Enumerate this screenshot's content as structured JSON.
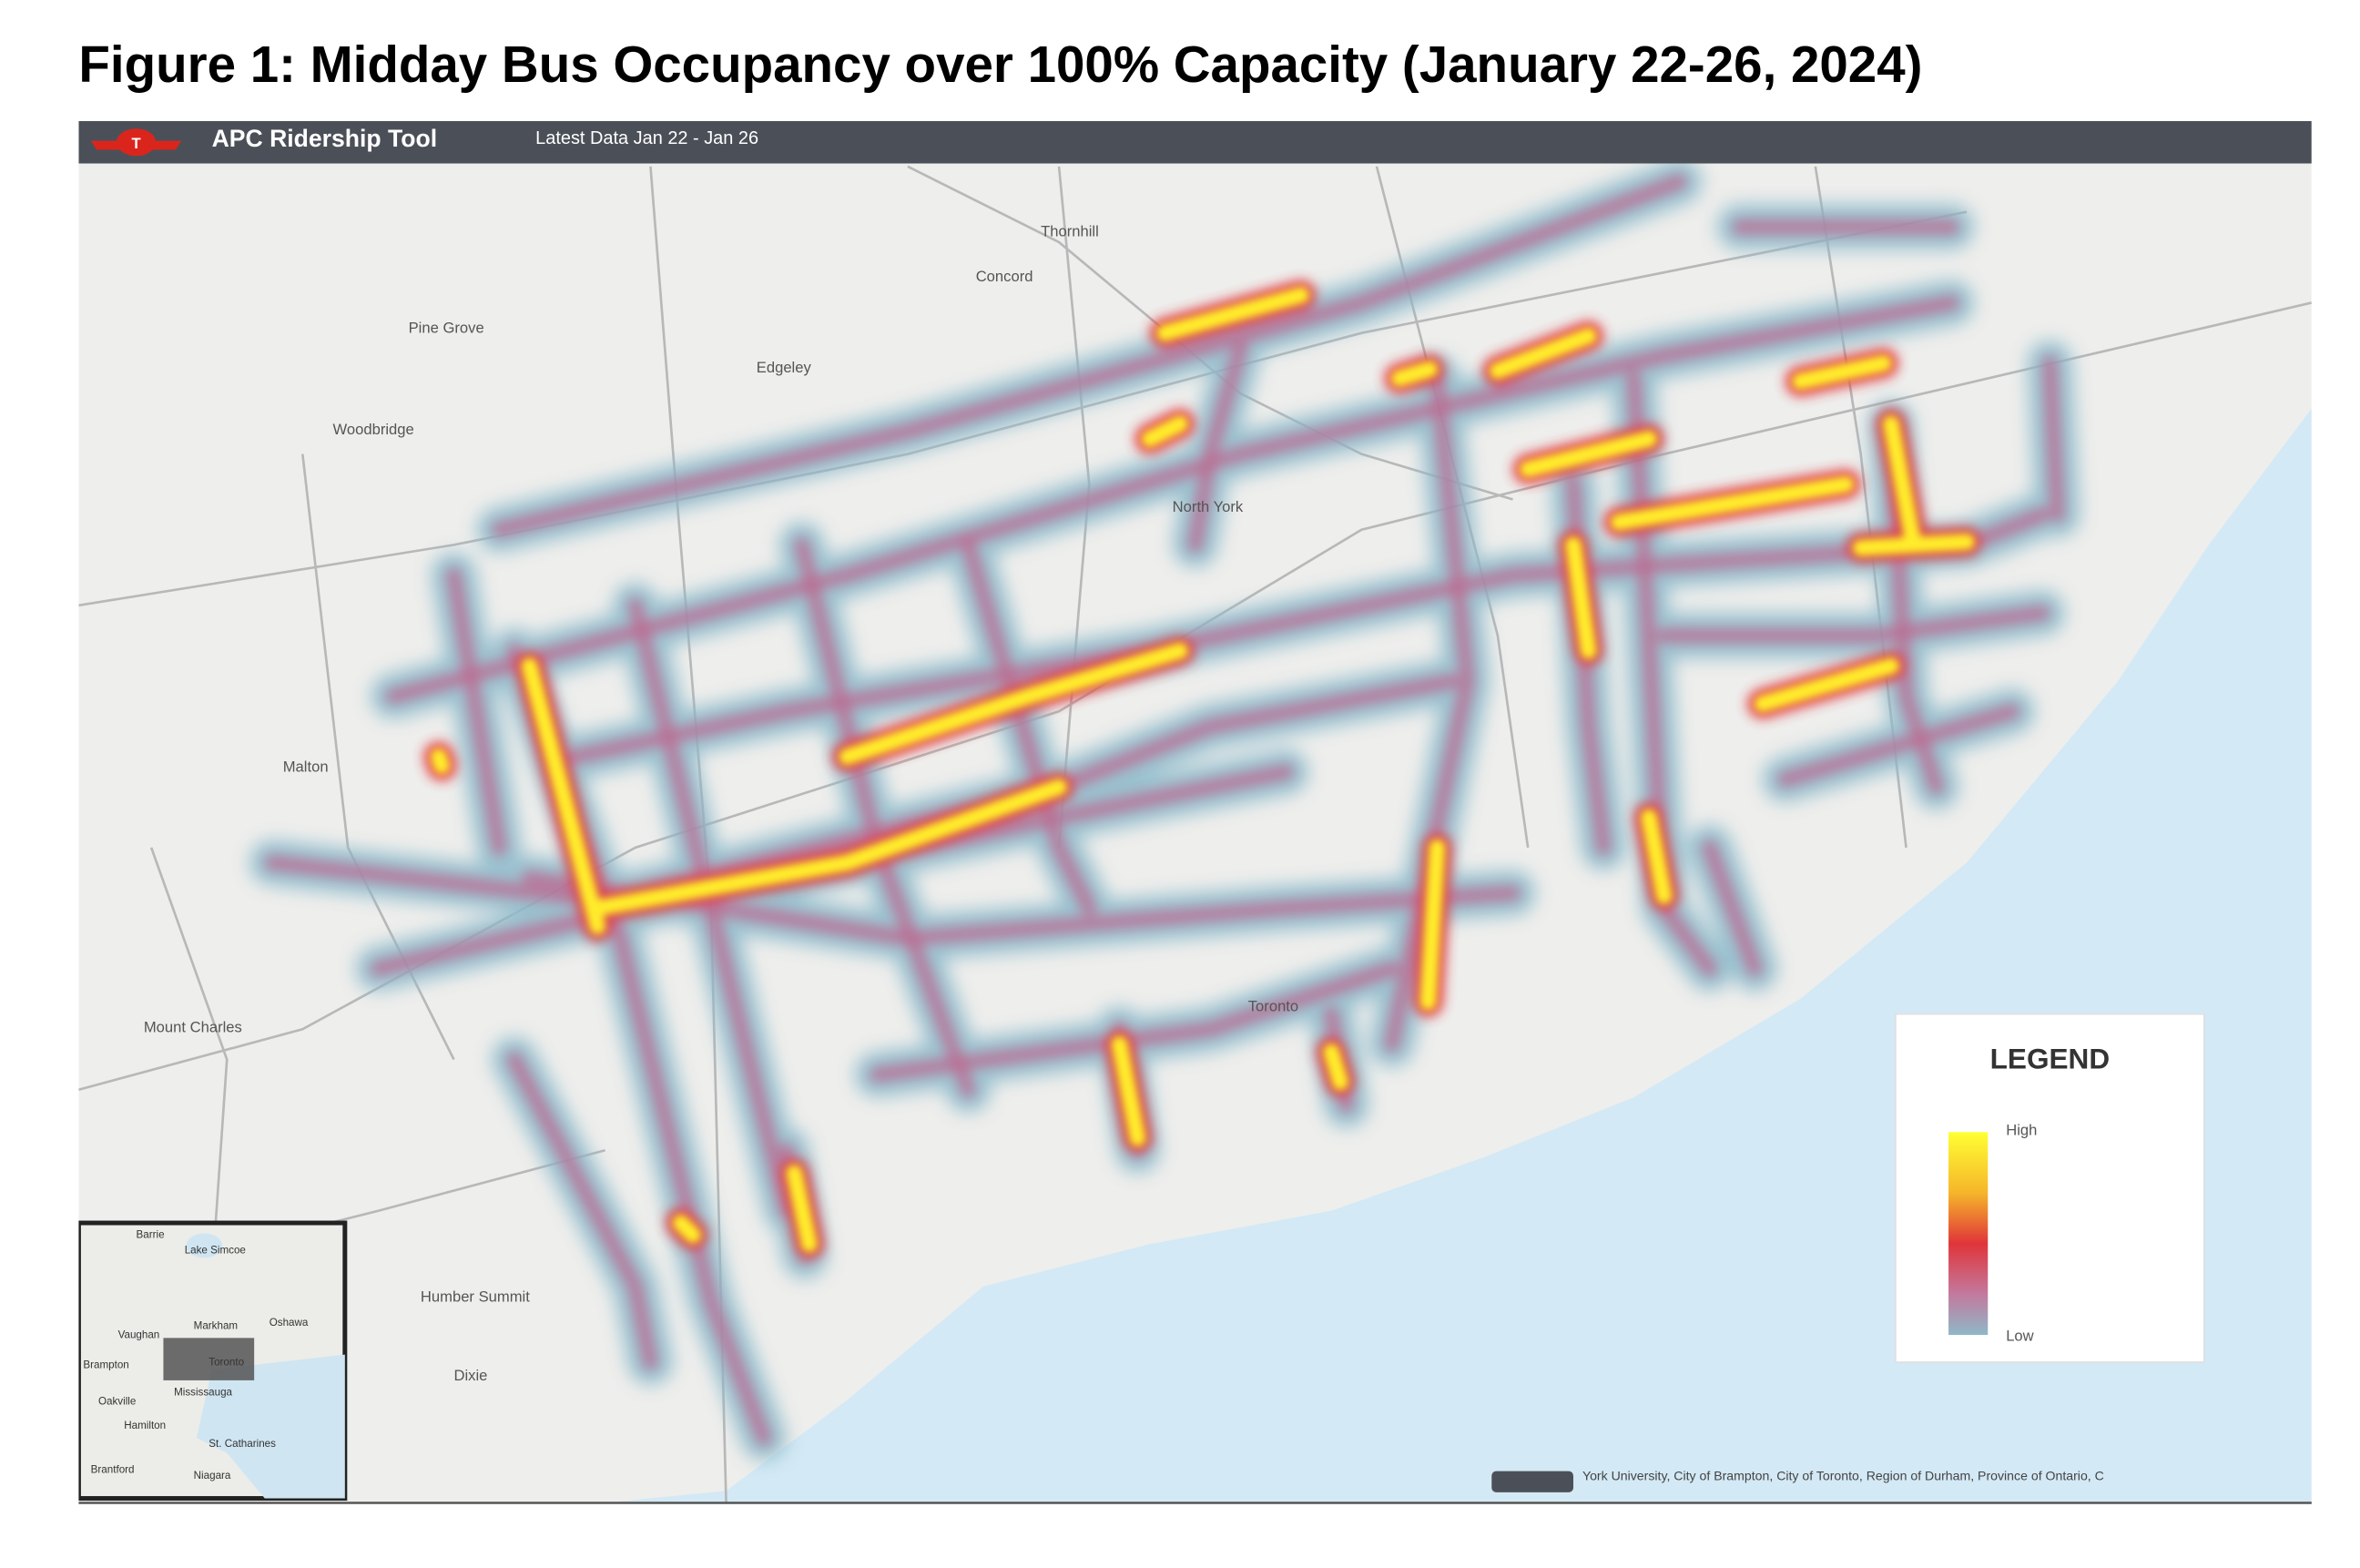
{
  "title": "Figure 1: Midday Bus Occupancy over 100% Capacity (January 22-26, 2024)",
  "header": {
    "app_name": "APC Ridership Tool",
    "latest_data": "Latest Data Jan 22 - Jan 26"
  },
  "map": {
    "place_labels": [
      "Thornhill",
      "Concord",
      "Edgeley",
      "Pine Grove",
      "Woodbridge",
      "North York",
      "Malton",
      "Toronto",
      "Dixie",
      "Mount Charles",
      "Humber Summit"
    ],
    "attribution": "York University, City of Brampton, City of Toronto, Region of Durham, Province of Ontario, C"
  },
  "inset": {
    "labels": [
      "Barrie",
      "Lake Simcoe",
      "Markham",
      "Oshawa",
      "Vaughan",
      "Brampton",
      "Toronto",
      "Mississauga",
      "Oakville",
      "Hamilton",
      "St. Catharines",
      "Brantford",
      "Niagara"
    ]
  },
  "legend": {
    "title": "LEGEND",
    "high": "High",
    "low": "Low"
  }
}
